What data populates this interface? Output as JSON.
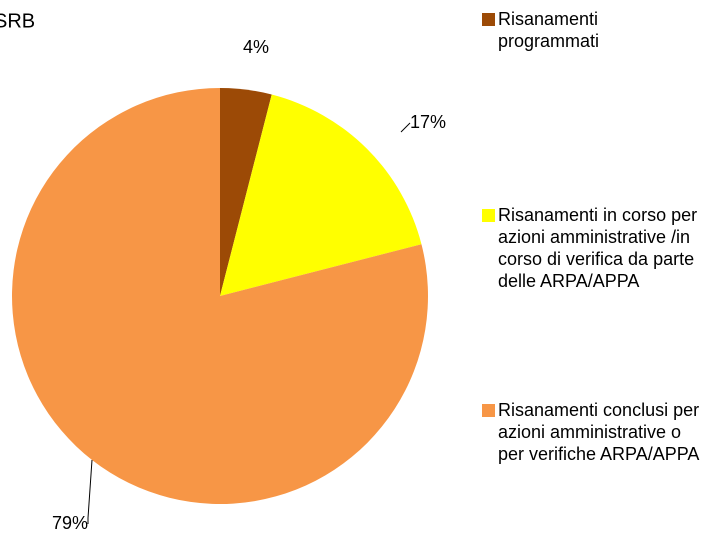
{
  "chart_data": {
    "type": "pie",
    "title": "SRB",
    "categories": [
      "Risanamenti programmati",
      "Risanamenti in corso per azioni amministrative /in corso di verifica da parte delle ARPA/APPA",
      "Risanamenti conclusi per azioni amministrative o per verifiche ARPA/APPA"
    ],
    "values": [
      4,
      17,
      79
    ],
    "value_labels": [
      "4%",
      "17%",
      "79%"
    ],
    "colors": [
      "#9c4a06",
      "#ffff00",
      "#f79646"
    ]
  }
}
